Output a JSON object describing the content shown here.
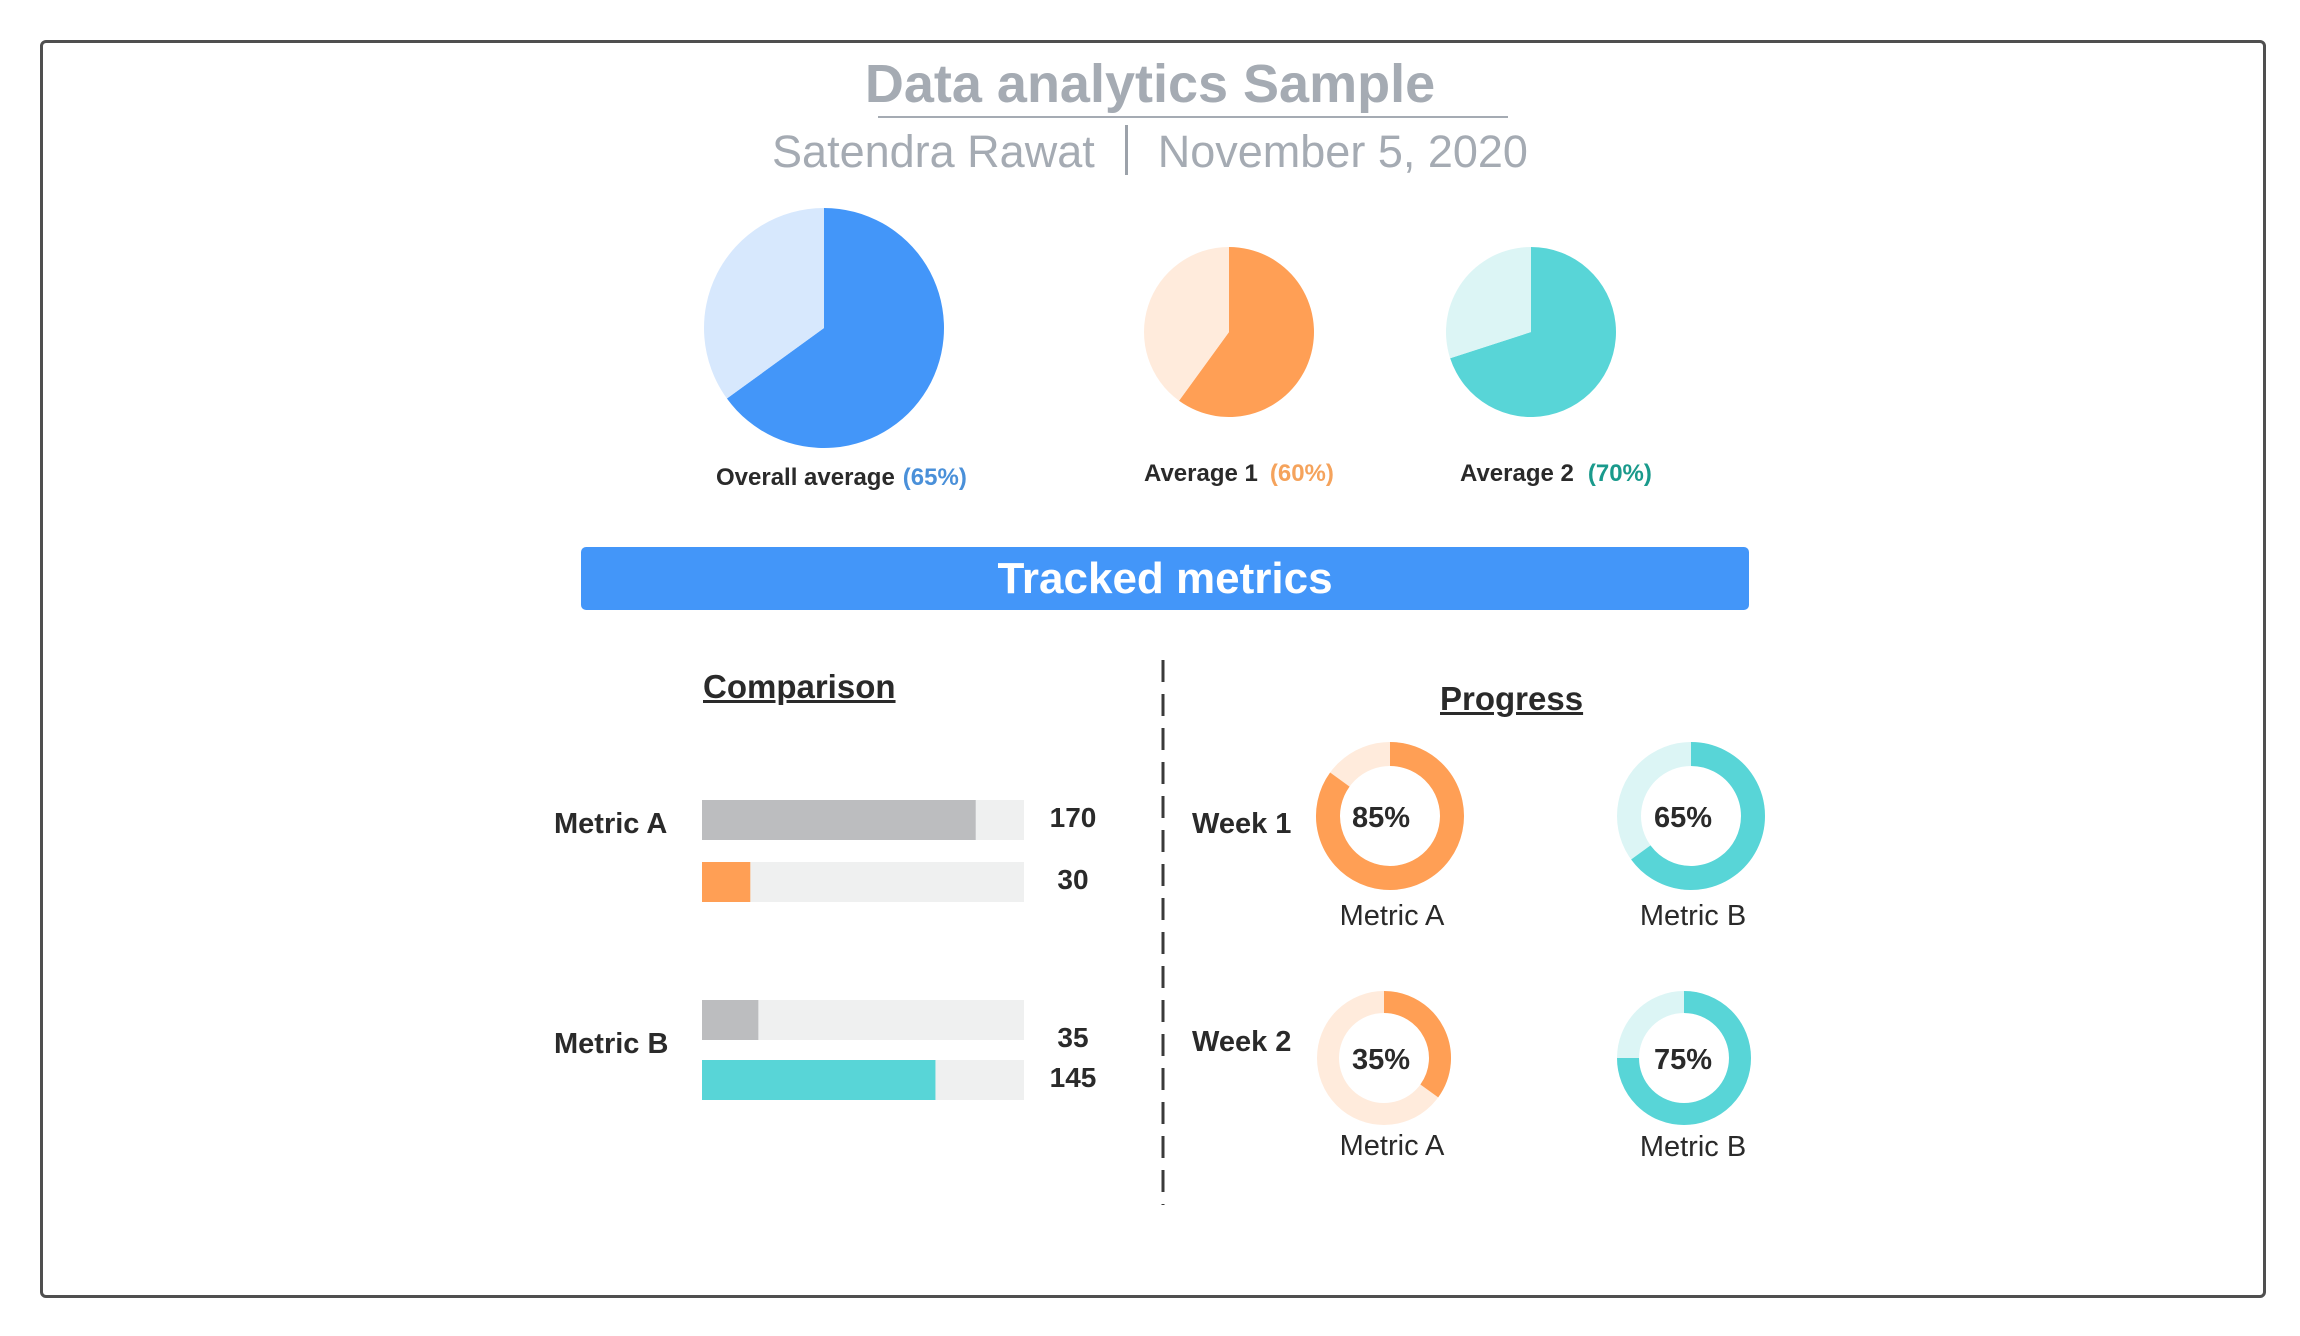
{
  "header": {
    "title": "Data analytics Sample",
    "author": "Satendra Rawat",
    "date": "November 5, 2020"
  },
  "colors": {
    "blue": "#4396f9",
    "blue_light": "#d7e8fd",
    "orange": "#ff9f55",
    "orange_light": "#ffebdc",
    "teal": "#58d5d7",
    "teal_light": "#dcf5f5",
    "gray_bar": "#bcbdbf",
    "track": "#eff0f0",
    "pct_blue": "#4a90d9",
    "pct_orange": "#f5a35c",
    "pct_teal": "#1a9a8c"
  },
  "banner": {
    "label": "Tracked metrics"
  },
  "chart_data": [
    {
      "type": "pie",
      "name": "overall",
      "label": "Overall average",
      "value_label": "(65%)",
      "value": 65,
      "slices": [
        {
          "value": 65,
          "color": "#4396f9"
        },
        {
          "value": 35,
          "color": "#d7e8fd"
        }
      ]
    },
    {
      "type": "pie",
      "name": "avg1",
      "label": "Average 1",
      "value_label": "(60%)",
      "value": 60,
      "slices": [
        {
          "value": 60,
          "color": "#ff9f55"
        },
        {
          "value": 40,
          "color": "#ffebdc"
        }
      ]
    },
    {
      "type": "pie",
      "name": "avg2",
      "label": "Average 2",
      "value_label": "(70%)",
      "value": 70,
      "slices": [
        {
          "value": 70,
          "color": "#58d5d7"
        },
        {
          "value": 30,
          "color": "#dcf5f5"
        }
      ]
    },
    {
      "type": "bar",
      "title": "Comparison",
      "orientation": "horizontal",
      "xlim": [
        0,
        200
      ],
      "groups": [
        {
          "label": "Metric A",
          "bars": [
            {
              "value": 170,
              "value_label": "170",
              "color": "#bcbdbf"
            },
            {
              "value": 30,
              "value_label": "30",
              "color": "#ff9f55"
            }
          ]
        },
        {
          "label": "Metric B",
          "bars": [
            {
              "value": 35,
              "value_label": "35",
              "color": "#bcbdbf"
            },
            {
              "value": 145,
              "value_label": "145",
              "color": "#58d5d7"
            }
          ]
        }
      ]
    },
    {
      "type": "pie",
      "subtype": "donut",
      "title": "Progress",
      "rows": [
        {
          "label": "Week 1",
          "items": [
            {
              "metric": "Metric A",
              "value": 85,
              "value_label": "85%",
              "color": "#ff9f55",
              "track": "#ffebdc"
            },
            {
              "metric": "Metric B",
              "value": 65,
              "value_label": "65%",
              "color": "#58d5d7",
              "track": "#dcf5f5"
            }
          ]
        },
        {
          "label": "Week 2",
          "items": [
            {
              "metric": "Metric A",
              "value": 35,
              "value_label": "35%",
              "color": "#ff9f55",
              "track": "#ffebdc"
            },
            {
              "metric": "Metric B",
              "value": 75,
              "value_label": "75%",
              "color": "#58d5d7",
              "track": "#dcf5f5"
            }
          ]
        }
      ]
    }
  ]
}
